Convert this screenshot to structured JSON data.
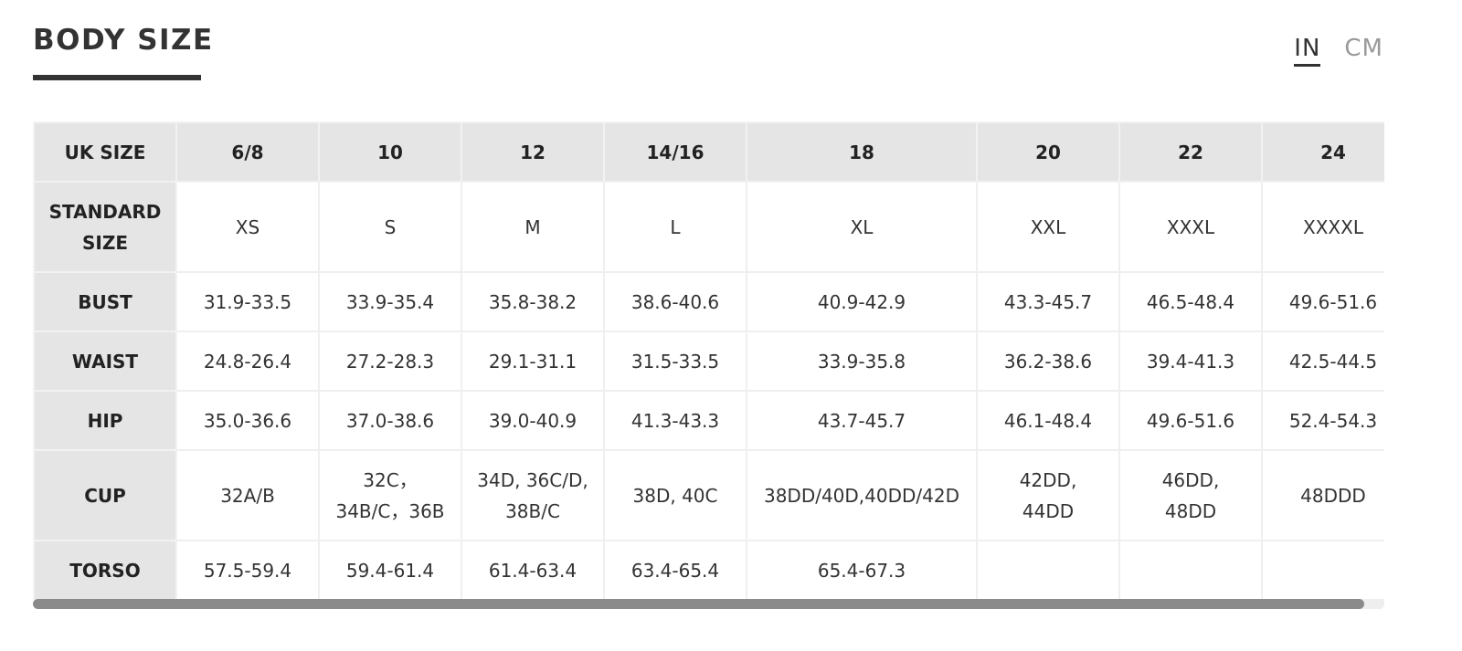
{
  "header": {
    "title": "BODY SIZE",
    "units": [
      "IN",
      "CM"
    ],
    "active_unit": 0
  },
  "table": {
    "columns": [
      "UK SIZE",
      "6/8",
      "10",
      "12",
      "14/16",
      "18",
      "20",
      "22",
      "24"
    ],
    "rows": [
      [
        "STANDARD\nSIZE",
        "XS",
        "S",
        "M",
        "L",
        "XL",
        "XXL",
        "XXXL",
        "XXXXL"
      ],
      [
        "BUST",
        "31.9-33.5",
        "33.9-35.4",
        "35.8-38.2",
        "38.6-40.6",
        "40.9-42.9",
        "43.3-45.7",
        "46.5-48.4",
        "49.6-51.6"
      ],
      [
        "WAIST",
        "24.8-26.4",
        "27.2-28.3",
        "29.1-31.1",
        "31.5-33.5",
        "33.9-35.8",
        "36.2-38.6",
        "39.4-41.3",
        "42.5-44.5"
      ],
      [
        "HIP",
        "35.0-36.6",
        "37.0-38.6",
        "39.0-40.9",
        "41.3-43.3",
        "43.7-45.7",
        "46.1-48.4",
        "49.6-51.6",
        "52.4-54.3"
      ],
      [
        "CUP",
        "32A/B",
        "32C，\n34B/C，36B",
        "34D, 36C/D,\n38B/C",
        "38D, 40C",
        "38DD/40D,40DD/42D",
        "42DD,\n44DD",
        "46DD,\n48DD",
        "48DDD"
      ],
      [
        "TORSO",
        "57.5-59.4",
        "59.4-61.4",
        "61.4-63.4",
        "63.4-65.4",
        "65.4-67.3",
        null,
        null,
        null
      ]
    ]
  }
}
